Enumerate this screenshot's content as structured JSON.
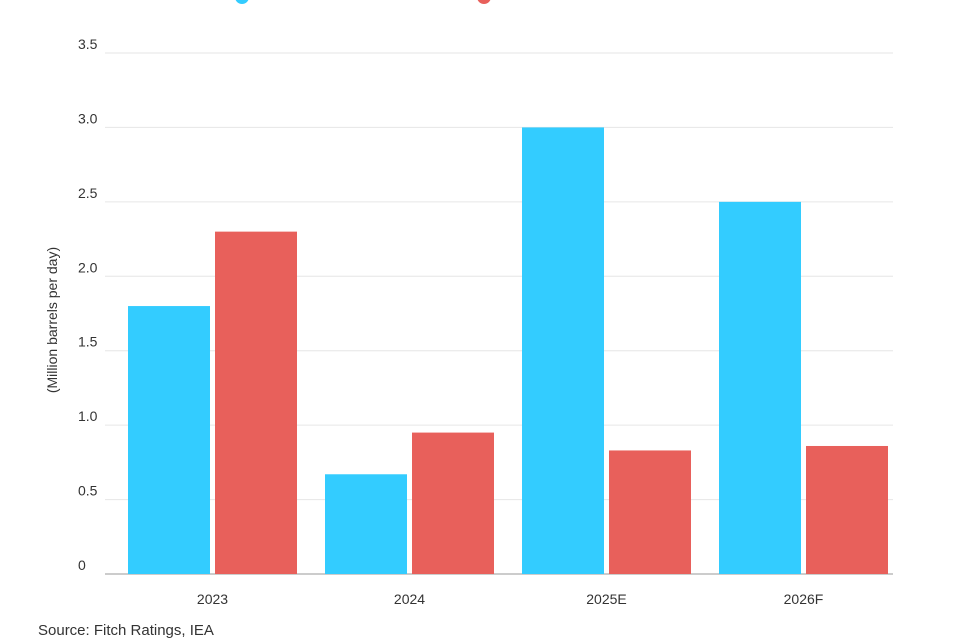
{
  "chart_data": {
    "type": "bar",
    "categories": [
      "2023",
      "2024",
      "2025E",
      "2026F"
    ],
    "series": [
      {
        "values": [
          1.8,
          0.67,
          3.0,
          2.5
        ],
        "color": "#33ccff"
      },
      {
        "values": [
          2.3,
          0.95,
          0.83,
          0.86
        ],
        "color": "#e8605b"
      }
    ],
    "ylabel": "(Million barrels per day)",
    "ylim": [
      0,
      3.5
    ],
    "yticks": [
      "0",
      "0.5",
      "1.0",
      "1.5",
      "2.0",
      "2.5",
      "3.0",
      "3.5"
    ],
    "grid": true,
    "legend": "top"
  },
  "source": "Source: Fitch Ratings, IEA"
}
